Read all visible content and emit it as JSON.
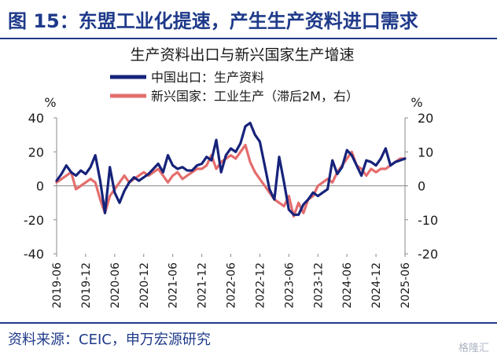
{
  "figure": {
    "title": "图 15：东盟工业化提速，产生生产资料进口需求",
    "source": "资料来源：CEIC，申万宏源研究",
    "watermark": "格隆汇"
  },
  "colors": {
    "title": "#1F3A8A",
    "series_navy": "#16237A",
    "series_red": "#E46D6D",
    "axis": "#888888"
  },
  "chart_data": {
    "type": "line",
    "title": "生产资料出口与新兴国家生产增速",
    "y_left_label": "%",
    "y_right_label": "%",
    "y_left_range": [
      -40,
      40
    ],
    "y_right_range": [
      -20,
      20
    ],
    "y_left_ticks": [
      40,
      20,
      0,
      -20,
      -40
    ],
    "y_right_ticks": [
      20,
      10,
      0,
      -10,
      -20
    ],
    "x_range": [
      "2019-06",
      "2025-06"
    ],
    "x_tick_labels": [
      "2019-06",
      "2019-12",
      "2020-06",
      "2020-12",
      "2021-06",
      "2021-12",
      "2022-06",
      "2022-12",
      "2023-06",
      "2023-12",
      "2024-06",
      "2024-12",
      "2025-06"
    ],
    "legend_position": "top-center",
    "series": [
      {
        "name": "中国出口：生产资料",
        "axis": "left",
        "color": "#16237A",
        "points": [
          [
            "2019-06",
            3
          ],
          [
            "2019-07",
            7
          ],
          [
            "2019-08",
            12
          ],
          [
            "2019-09",
            8
          ],
          [
            "2019-10",
            6
          ],
          [
            "2019-11",
            9
          ],
          [
            "2019-12",
            7
          ],
          [
            "2020-01",
            11
          ],
          [
            "2020-02",
            18
          ],
          [
            "2020-03",
            3
          ],
          [
            "2020-04",
            -16
          ],
          [
            "2020-05",
            11
          ],
          [
            "2020-06",
            -4
          ],
          [
            "2020-07",
            -10
          ],
          [
            "2020-08",
            -3
          ],
          [
            "2020-09",
            2
          ],
          [
            "2020-10",
            5
          ],
          [
            "2020-11",
            3
          ],
          [
            "2020-12",
            5
          ],
          [
            "2021-01",
            7
          ],
          [
            "2021-02",
            10
          ],
          [
            "2021-03",
            13
          ],
          [
            "2021-04",
            8
          ],
          [
            "2021-05",
            18
          ],
          [
            "2021-06",
            12
          ],
          [
            "2021-07",
            10
          ],
          [
            "2021-08",
            11
          ],
          [
            "2021-09",
            9
          ],
          [
            "2021-10",
            9
          ],
          [
            "2021-11",
            12
          ],
          [
            "2021-12",
            13
          ],
          [
            "2022-01",
            17
          ],
          [
            "2022-02",
            15
          ],
          [
            "2022-03",
            27
          ],
          [
            "2022-04",
            8
          ],
          [
            "2022-05",
            18
          ],
          [
            "2022-06",
            22
          ],
          [
            "2022-07",
            20
          ],
          [
            "2022-08",
            25
          ],
          [
            "2022-09",
            35
          ],
          [
            "2022-10",
            37
          ],
          [
            "2022-11",
            30
          ],
          [
            "2022-12",
            26
          ],
          [
            "2023-01",
            12
          ],
          [
            "2023-02",
            -2
          ],
          [
            "2023-03",
            -8
          ],
          [
            "2023-04",
            17
          ],
          [
            "2023-05",
            2
          ],
          [
            "2023-06",
            -14
          ],
          [
            "2023-07",
            -17
          ],
          [
            "2023-08",
            -17
          ],
          [
            "2023-09",
            -11
          ],
          [
            "2023-10",
            -8
          ],
          [
            "2023-11",
            -4
          ],
          [
            "2023-12",
            -6
          ],
          [
            "2024-01",
            -4
          ],
          [
            "2024-02",
            -2
          ],
          [
            "2024-03",
            15
          ],
          [
            "2024-04",
            7
          ],
          [
            "2024-05",
            11
          ],
          [
            "2024-06",
            21
          ],
          [
            "2024-07",
            18
          ],
          [
            "2024-08",
            12
          ],
          [
            "2024-09",
            6
          ],
          [
            "2024-10",
            15
          ],
          [
            "2024-11",
            14
          ],
          [
            "2024-12",
            12
          ],
          [
            "2025-01",
            16
          ],
          [
            "2025-02",
            22
          ],
          [
            "2025-03",
            12
          ],
          [
            "2025-04",
            14
          ],
          [
            "2025-05",
            15
          ],
          [
            "2025-06",
            16
          ]
        ]
      },
      {
        "name": "新兴国家：工业生产（滞后2M，右）",
        "axis": "right",
        "color": "#E46D6D",
        "points": [
          [
            "2019-06",
            1
          ],
          [
            "2019-07",
            2
          ],
          [
            "2019-08",
            3
          ],
          [
            "2019-09",
            4
          ],
          [
            "2019-10",
            -1
          ],
          [
            "2019-11",
            0
          ],
          [
            "2019-12",
            1
          ],
          [
            "2020-01",
            2
          ],
          [
            "2020-02",
            1
          ],
          [
            "2020-03",
            -4
          ],
          [
            "2020-04",
            -8
          ],
          [
            "2020-05",
            -3
          ],
          [
            "2020-06",
            -1
          ],
          [
            "2020-07",
            1
          ],
          [
            "2020-08",
            3
          ],
          [
            "2020-09",
            1
          ],
          [
            "2020-10",
            2
          ],
          [
            "2020-11",
            3
          ],
          [
            "2020-12",
            4
          ],
          [
            "2021-01",
            3
          ],
          [
            "2021-02",
            4
          ],
          [
            "2021-03",
            5
          ],
          [
            "2021-04",
            3
          ],
          [
            "2021-05",
            1
          ],
          [
            "2021-06",
            3
          ],
          [
            "2021-07",
            4
          ],
          [
            "2021-08",
            2
          ],
          [
            "2021-09",
            3
          ],
          [
            "2021-10",
            4
          ],
          [
            "2021-11",
            5
          ],
          [
            "2021-12",
            5
          ],
          [
            "2022-01",
            6
          ],
          [
            "2022-02",
            9
          ],
          [
            "2022-03",
            5
          ],
          [
            "2022-04",
            7
          ],
          [
            "2022-05",
            8
          ],
          [
            "2022-06",
            9
          ],
          [
            "2022-07",
            8
          ],
          [
            "2022-08",
            10
          ],
          [
            "2022-09",
            12
          ],
          [
            "2022-10",
            7
          ],
          [
            "2022-11",
            4
          ],
          [
            "2022-12",
            2
          ],
          [
            "2023-01",
            0
          ],
          [
            "2023-02",
            -2
          ],
          [
            "2023-03",
            -4
          ],
          [
            "2023-04",
            -5
          ],
          [
            "2023-05",
            -6
          ],
          [
            "2023-06",
            -3
          ],
          [
            "2023-07",
            -9
          ],
          [
            "2023-08",
            -5
          ],
          [
            "2023-09",
            -8
          ],
          [
            "2023-10",
            -4
          ],
          [
            "2023-11",
            -3
          ],
          [
            "2023-12",
            0
          ],
          [
            "2024-01",
            1
          ],
          [
            "2024-02",
            2
          ],
          [
            "2024-03",
            1
          ],
          [
            "2024-04",
            4
          ],
          [
            "2024-05",
            6
          ],
          [
            "2024-06",
            8
          ],
          [
            "2024-07",
            10
          ],
          [
            "2024-08",
            6
          ],
          [
            "2024-09",
            5
          ],
          [
            "2024-10",
            3
          ],
          [
            "2024-11",
            5
          ],
          [
            "2024-12",
            4
          ],
          [
            "2025-01",
            5
          ],
          [
            "2025-02",
            5
          ],
          [
            "2025-03",
            6
          ],
          [
            "2025-04",
            7
          ],
          [
            "2025-05",
            8
          ],
          [
            "2025-06",
            8
          ]
        ]
      }
    ]
  }
}
